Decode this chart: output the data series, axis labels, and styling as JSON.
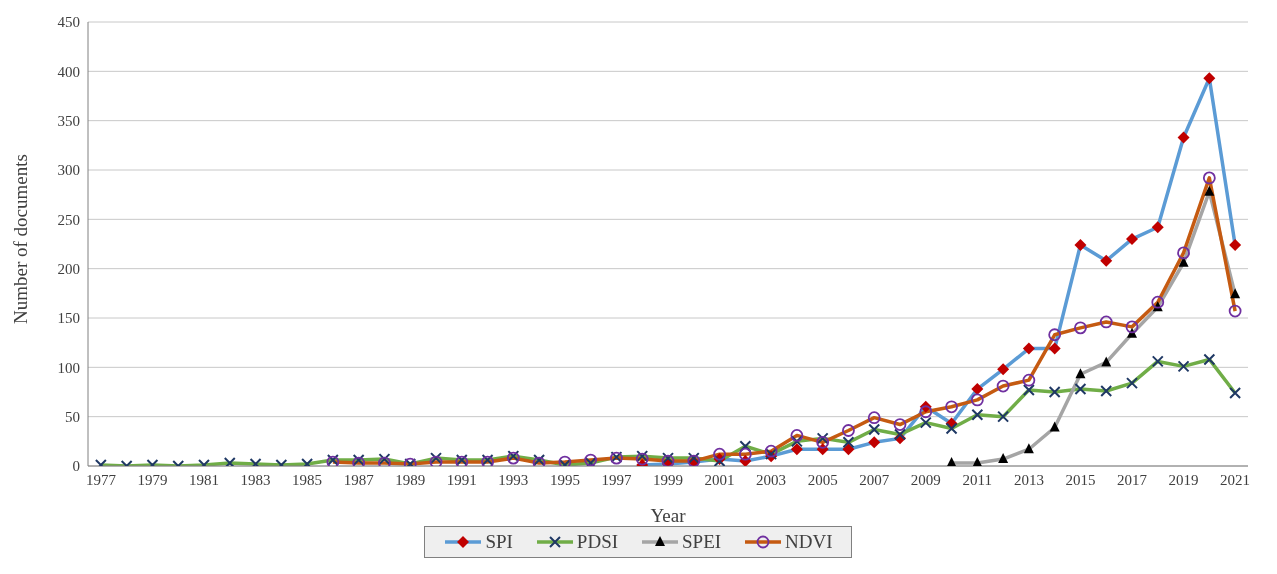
{
  "chart_data": {
    "type": "line",
    "xlabel": "Year",
    "ylabel": "Number of documents",
    "xlim": [
      1976.5,
      2021.5
    ],
    "xticks": [
      1977,
      1979,
      1981,
      1983,
      1985,
      1987,
      1989,
      1991,
      1993,
      1995,
      1997,
      1999,
      2001,
      2003,
      2005,
      2007,
      2009,
      2011,
      2013,
      2015,
      2017,
      2019,
      2021
    ],
    "ylim": [
      0,
      450
    ],
    "yticks": [
      0,
      50,
      100,
      150,
      200,
      250,
      300,
      350,
      400,
      450
    ],
    "grid": "y",
    "legend": "bottom",
    "line_style": "solid",
    "series": [
      {
        "name": "SPI",
        "color": "#5b9bd5",
        "marker": "diamond",
        "colors": [
          "#c00000",
          "#c00000",
          "#c00000",
          "#c00000",
          "#c00000",
          "#c00000",
          "#c00000",
          "#c00000",
          "#c00000",
          "#c00000",
          "#c00000",
          "#c00000",
          "#c00000",
          "#c00000",
          "#c00000",
          "#c00000",
          "#c00000",
          "#c00000",
          "#c00000",
          "#c00000",
          "#c00000",
          "#c00000",
          "#c00000",
          "#c00000"
        ],
        "x": [
          1998,
          1999,
          2000,
          2001,
          2002,
          2003,
          2004,
          2005,
          2006,
          2007,
          2008,
          2009,
          2010,
          2011,
          2012,
          2013,
          2014,
          2015,
          2016,
          2017,
          2018,
          2019,
          2020,
          2021
        ],
        "values": [
          1,
          2,
          4,
          7,
          5,
          10,
          17,
          17,
          17,
          24,
          28,
          60,
          43,
          78,
          98,
          119,
          119,
          224,
          208,
          230,
          242,
          333,
          393,
          224
        ]
      },
      {
        "name": "PDSI",
        "color": "#70ad47",
        "marker": "cross",
        "colors": [
          "#1f3864",
          "#1f3864",
          "#1f3864",
          "#1f3864",
          "#1f3864",
          "#1f3864",
          "#1f3864",
          "#1f3864",
          "#1f3864",
          "#1f3864",
          "#1f3864",
          "#1f3864",
          "#1f3864",
          "#1f3864",
          "#1f3864",
          "#1f3864",
          "#1f3864",
          "#1f3864",
          "#1f3864",
          "#1f3864",
          "#1f3864",
          "#1f3864",
          "#1f3864",
          "#1f3864",
          "#1f3864",
          "#1f3864",
          "#1f3864",
          "#1f3864",
          "#1f3864",
          "#1f3864",
          "#1f3864",
          "#1f3864",
          "#1f3864",
          "#1f3864",
          "#1f3864",
          "#1f3864",
          "#1f3864",
          "#1f3864",
          "#1f3864",
          "#1f3864",
          "#1f3864",
          "#1f3864",
          "#1f3864",
          "#1f3864",
          "#1f3864"
        ],
        "x": [
          1977,
          1978,
          1979,
          1980,
          1981,
          1982,
          1983,
          1984,
          1985,
          1986,
          1987,
          1988,
          1989,
          1990,
          1991,
          1992,
          1993,
          1994,
          1995,
          1996,
          1997,
          1998,
          1999,
          2000,
          2001,
          2002,
          2003,
          2004,
          2005,
          2006,
          2007,
          2008,
          2009,
          2010,
          2011,
          2012,
          2013,
          2014,
          2015,
          2016,
          2017,
          2018,
          2019,
          2020,
          2021
        ],
        "values": [
          1,
          0,
          1,
          0,
          1,
          3,
          2,
          1,
          2,
          6,
          6,
          7,
          2,
          8,
          6,
          6,
          10,
          6,
          1,
          3,
          9,
          10,
          8,
          8,
          5,
          20,
          12,
          25,
          28,
          24,
          37,
          32,
          44,
          38,
          52,
          50,
          77,
          75,
          78,
          76,
          84,
          106,
          101,
          108,
          74
        ]
      },
      {
        "name": "SPEI",
        "color": "#a5a5a5",
        "marker": "triangle",
        "colors": [
          "#000000",
          "#000000",
          "#000000",
          "#000000",
          "#000000",
          "#000000",
          "#000000",
          "#000000",
          "#000000",
          "#000000",
          "#000000",
          "#000000"
        ],
        "x": [
          2010,
          2011,
          2012,
          2013,
          2014,
          2015,
          2016,
          2017,
          2018,
          2019,
          2020,
          2021
        ],
        "values": [
          3,
          3,
          7,
          17,
          39,
          93,
          105,
          134,
          161,
          206,
          278,
          174
        ]
      },
      {
        "name": "NDVI",
        "color": "#c55a11",
        "marker": "circle",
        "colors": [
          "#7030a0",
          "#7030a0",
          "#7030a0",
          "#7030a0",
          "#7030a0",
          "#7030a0",
          "#7030a0",
          "#7030a0",
          "#7030a0",
          "#7030a0",
          "#7030a0",
          "#7030a0",
          "#7030a0",
          "#7030a0",
          "#7030a0",
          "#7030a0",
          "#7030a0",
          "#7030a0",
          "#7030a0",
          "#7030a0",
          "#7030a0",
          "#7030a0",
          "#7030a0",
          "#7030a0",
          "#7030a0",
          "#7030a0",
          "#7030a0",
          "#7030a0",
          "#7030a0",
          "#7030a0",
          "#7030a0",
          "#7030a0",
          "#7030a0",
          "#7030a0",
          "#7030a0",
          "#7030a0"
        ],
        "x": [
          1986,
          1987,
          1988,
          1989,
          1990,
          1991,
          1992,
          1993,
          1994,
          1995,
          1996,
          1997,
          1998,
          1999,
          2000,
          2001,
          2002,
          2003,
          2004,
          2005,
          2006,
          2007,
          2008,
          2009,
          2010,
          2011,
          2012,
          2013,
          2014,
          2015,
          2016,
          2017,
          2018,
          2019,
          2020,
          2021
        ],
        "values": [
          4,
          3,
          3,
          2,
          4,
          4,
          4,
          8,
          3,
          4,
          6,
          8,
          7,
          5,
          5,
          12,
          12,
          15,
          31,
          24,
          36,
          49,
          42,
          55,
          60,
          67,
          81,
          87,
          133,
          140,
          146,
          141,
          166,
          216,
          292,
          157
        ]
      }
    ]
  }
}
